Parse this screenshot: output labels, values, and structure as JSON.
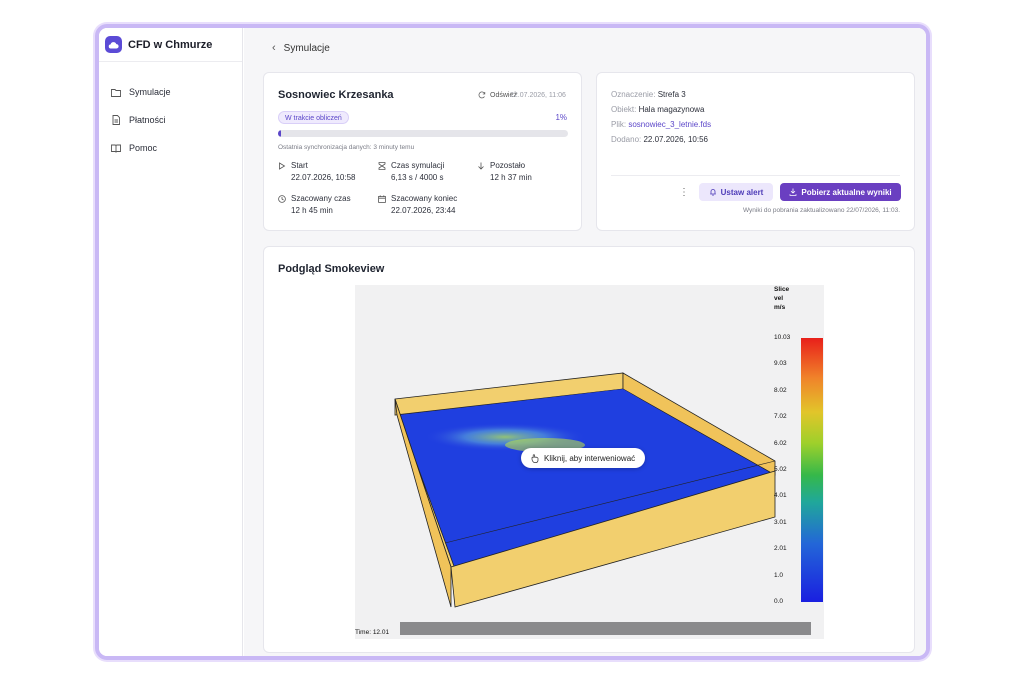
{
  "app": {
    "name": "CFD w Chmurze"
  },
  "sidebar": {
    "items": [
      {
        "label": "Symulacje",
        "icon": "folder-icon"
      },
      {
        "label": "Płatności",
        "icon": "document-icon"
      },
      {
        "label": "Pomoc",
        "icon": "book-icon"
      }
    ]
  },
  "breadcrumb": {
    "label": "Symulacje"
  },
  "run": {
    "title": "Sosnowiec Krzesanka",
    "refresh_label": "Odśwież",
    "refresh_time": "22.07.2026, 11:06",
    "status": "W trakcie obliczeń",
    "progress_text": "1%",
    "progress": 0.01,
    "sync_text": "Ostatnia synchronizacja danych: 3 minuty temu",
    "stats": [
      {
        "label": "Start",
        "value": "22.07.2026, 10:58",
        "icon": "play-icon"
      },
      {
        "label": "Czas symulacji",
        "value": "6,13 s / 4000 s",
        "icon": "hourglass-icon"
      },
      {
        "label": "Pozostało",
        "value": "12 h 37 min",
        "icon": "arrow-down-icon"
      },
      {
        "label": "Szacowany czas",
        "value": "12 h 45 min",
        "icon": "clock-icon"
      },
      {
        "label": "Szacowany koniec",
        "value": "22.07.2026, 23:44",
        "icon": "calendar-icon"
      }
    ]
  },
  "info": {
    "designation_label": "Oznaczenie:",
    "designation": "Strefa 3",
    "object_label": "Obiekt:",
    "object": "Hala magazynowa",
    "file_label": "Plik:",
    "file": "sosnowiec_3_letnie.fds",
    "added_label": "Dodano:",
    "added": "22.07.2026, 10:56",
    "alert_button": "Ustaw alert",
    "download_button": "Pobierz aktualne wyniki",
    "download_note": "Wyniki do pobrania zaktualizowano 22/07/2026, 11:03."
  },
  "viewer": {
    "title": "Podgląd Smokeview",
    "colorbar_title": [
      "Slice",
      "vel",
      "m/s"
    ],
    "colorbar_ticks": [
      "10.03",
      "9.03",
      "8.02",
      "7.02",
      "6.02",
      "5.02",
      "4.01",
      "3.01",
      "2.01",
      "1.0",
      "0.0"
    ],
    "time_label": "Time: 12.01",
    "hint": "Kliknij, aby interweniować"
  },
  "colors": {
    "accent": "#5b46c9",
    "primary_button": "#6a3fc1",
    "frame": "#c9b8f5"
  }
}
